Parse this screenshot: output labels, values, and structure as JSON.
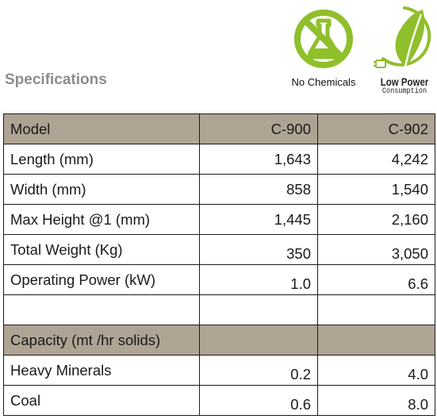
{
  "heading": "Specifications",
  "badges": {
    "no_chemicals": "No Chemicals",
    "low_power_line1": "Low Power",
    "low_power_line2": "Consumption"
  },
  "colors": {
    "header_fill": "#afa493",
    "badge_green": "#8fbf2a",
    "heading_gray": "#8c8c8c"
  },
  "table": {
    "header": {
      "label": "Model",
      "c900": "C-900",
      "c902": "C-902"
    },
    "rows": [
      {
        "label": "Length (mm)",
        "c900": "1,643",
        "c902": "4,242"
      },
      {
        "label": "Width (mm)",
        "c900": "858",
        "c902": "1,540"
      },
      {
        "label": "Max Height @1 (mm)",
        "c900": "1,445",
        "c902": "2,160"
      },
      {
        "label": "Total Weight (Kg)",
        "c900": "350",
        "c902": "3,050"
      },
      {
        "label": "Operating Power (kW)",
        "c900": "1.0",
        "c902": "6.6"
      }
    ],
    "capacity_header": "Capacity (mt /hr solids)",
    "capacity_rows": [
      {
        "label": "Heavy Minerals",
        "c900": "0.2",
        "c902": "4.0"
      },
      {
        "label": "Coal",
        "c900": "0.6",
        "c902": "8.0"
      }
    ]
  }
}
